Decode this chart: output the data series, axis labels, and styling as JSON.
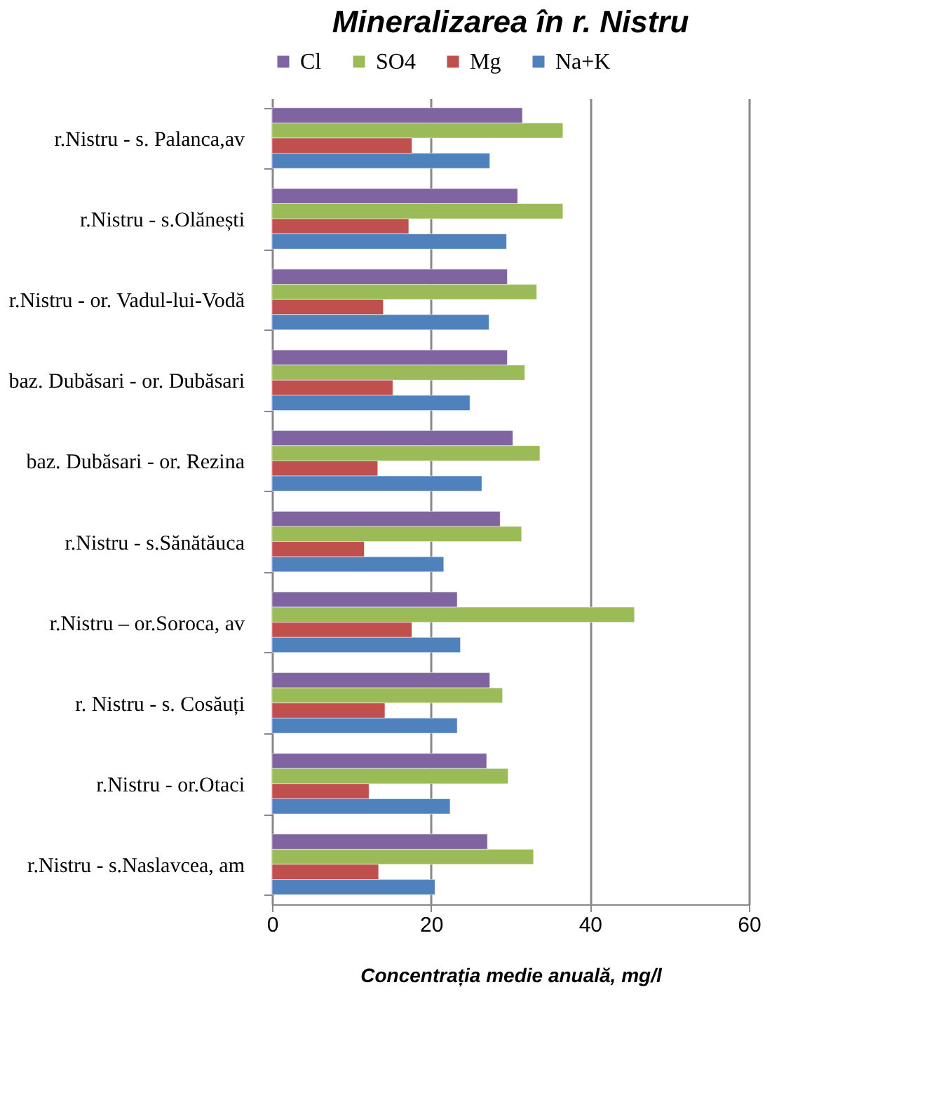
{
  "chart_data": {
    "type": "bar",
    "orientation": "horizontal",
    "title": "Mineralizarea în r. Nistru",
    "xlabel": "Concentrația medie anuală, mg/l",
    "categories": [
      "r.Nistru - s. Palanca,av",
      "r.Nistru - s.Olănești",
      "r.Nistru - or. Vadul-lui-Vodă",
      "baz. Dubăsari - or. Dubăsari",
      "baz. Dubăsari - or. Rezina",
      "r.Nistru - s.Sănătăuca",
      "r.Nistru – or.Soroca, av",
      "r. Nistru - s. Cosăuți",
      "r.Nistru - or.Otaci",
      "r.Nistru - s.Naslavcea, am"
    ],
    "series": [
      {
        "name": "Cl",
        "color": "#8064a2",
        "values": [
          31.5,
          30.9,
          29.6,
          29.6,
          30.3,
          28.7,
          23.3,
          27.4,
          27.0,
          27.1
        ]
      },
      {
        "name": "SO4",
        "color": "#9bbb59",
        "values": [
          36.6,
          36.6,
          33.3,
          31.8,
          33.7,
          31.4,
          45.6,
          29.0,
          29.7,
          32.9
        ]
      },
      {
        "name": "Mg",
        "color": "#c0504d",
        "values": [
          17.6,
          17.2,
          14.0,
          15.2,
          13.3,
          11.6,
          17.6,
          14.2,
          12.2,
          13.4
        ]
      },
      {
        "name": "Na+K",
        "color": "#4f81bd",
        "values": [
          27.4,
          29.5,
          27.3,
          24.9,
          26.4,
          21.6,
          23.7,
          23.3,
          22.4,
          20.5
        ]
      }
    ],
    "xlim": [
      0,
      60
    ],
    "xticks": [
      0,
      20,
      40,
      60
    ],
    "grid": "x",
    "legend": "top"
  }
}
